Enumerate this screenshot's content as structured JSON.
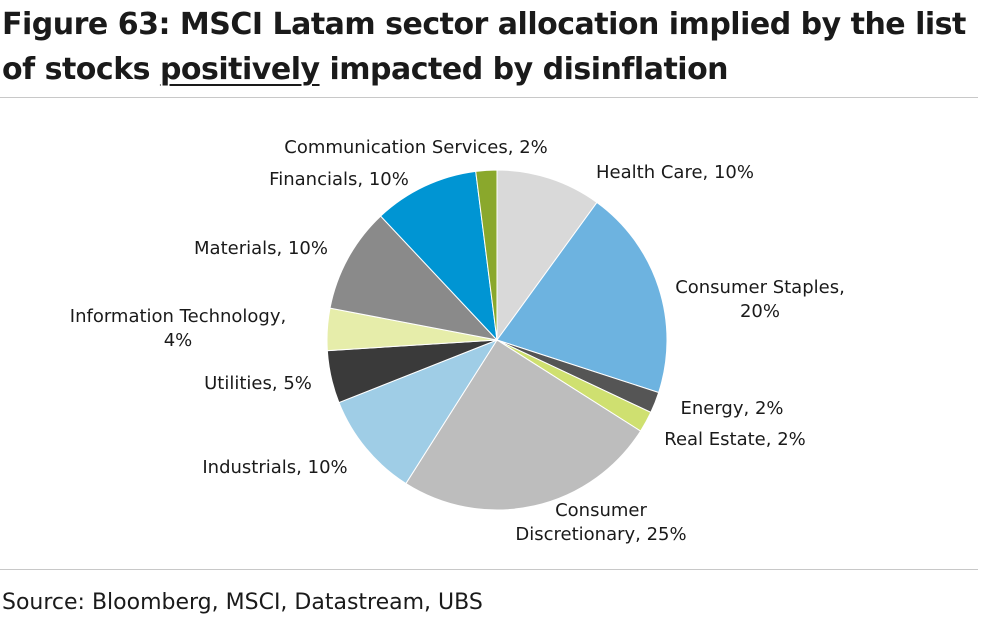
{
  "title": {
    "before": "Figure 63: MSCI Latam sector allocation implied by the list of stocks ",
    "emphasis": "positively",
    "after": " impacted by disinflation"
  },
  "source": "Source: Bloomberg, MSCI, Datastream, UBS",
  "chart_data": {
    "type": "pie",
    "title": "Figure 63: MSCI Latam sector allocation implied by the list of stocks positively impacted by disinflation",
    "legend": "none (labels next to slices)",
    "slices": [
      {
        "label": "Health Care",
        "value": 10,
        "value_text": "10%",
        "color": "#d9d9d9"
      },
      {
        "label": "Consumer Staples",
        "value": 20,
        "value_text": "20%",
        "color": "#6db3e0"
      },
      {
        "label": "Energy",
        "value": 2,
        "value_text": "2%",
        "color": "#555555"
      },
      {
        "label": "Real Estate",
        "value": 2,
        "value_text": "2%",
        "color": "#cfe070"
      },
      {
        "label": "Consumer Discretionary",
        "value": 25,
        "value_text": "25%",
        "color": "#bdbdbd"
      },
      {
        "label": "Industrials",
        "value": 10,
        "value_text": "10%",
        "color": "#9fcde6"
      },
      {
        "label": "Utilities",
        "value": 5,
        "value_text": "5%",
        "color": "#3a3a3a"
      },
      {
        "label": "Information Technology",
        "value": 4,
        "value_text": "4%",
        "color": "#e6edaa"
      },
      {
        "label": "Materials",
        "value": 10,
        "value_text": "10%",
        "color": "#8a8a8a"
      },
      {
        "label": "Financials",
        "value": 10,
        "value_text": "10%",
        "color": "#0095d3"
      },
      {
        "label": "Communication Services",
        "value": 2,
        "value_text": "2%",
        "color": "#8aa82c"
      }
    ],
    "label_text": [
      [
        "Health Care, 10%"
      ],
      [
        "Consumer Staples,",
        "20%"
      ],
      [
        "Energy, 2%"
      ],
      [
        "Real Estate, 2%"
      ],
      [
        "Consumer",
        "Discretionary, 25%"
      ],
      [
        "Industrials, 10%"
      ],
      [
        "Utilities, 5%"
      ],
      [
        "Information Technology,",
        "4%"
      ],
      [
        "Materials, 10%"
      ],
      [
        "Financials, 10%"
      ],
      [
        "Communication Services, 2%"
      ]
    ]
  }
}
